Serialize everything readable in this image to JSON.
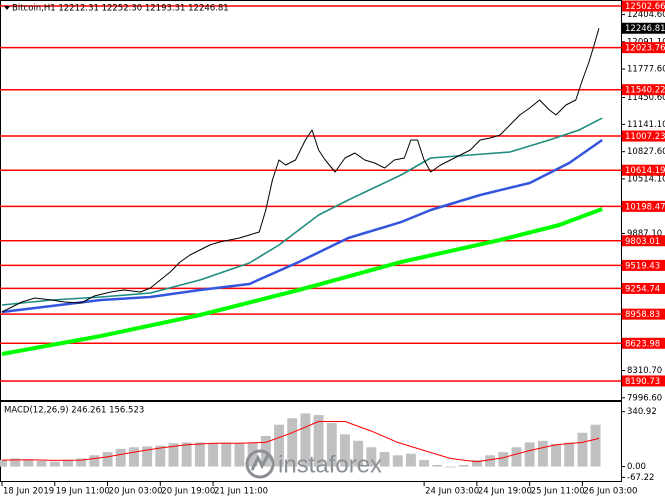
{
  "chart_data": [
    {
      "type": "line",
      "title": "Bitcoin,H1  12212.31 12252.30 12193.31 12246.81",
      "xlim": [
        0,
        188
      ],
      "ylim": [
        7971.66,
        12571.66
      ],
      "xticks": [
        {
          "value": 0,
          "label": "18 Jun 2019"
        },
        {
          "value": 16,
          "label": "19 Jun 11:00"
        },
        {
          "value": 32,
          "label": "20 Jun 03:00"
        },
        {
          "value": 48,
          "label": "20 Jun 19:00"
        },
        {
          "value": 64,
          "label": "21 Jun 11:00"
        },
        {
          "value": 128,
          "label": "24 Jun 03:00"
        },
        {
          "value": 144,
          "label": "24 Jun 19:00"
        },
        {
          "value": 160,
          "label": "25 Jun 11:00"
        },
        {
          "value": 176,
          "label": "26 Jun 03:00"
        }
      ],
      "yticks": [
        {
          "value": 12404.6,
          "label": "12404.60"
        },
        {
          "value": 12091.1,
          "label": "12091.10"
        },
        {
          "value": 11777.6,
          "label": "11777.60"
        },
        {
          "value": 11450.6,
          "label": "11450.60"
        },
        {
          "value": 11141.1,
          "label": "11141.10"
        },
        {
          "value": 10827.6,
          "label": "10827.60"
        },
        {
          "value": 10514.1,
          "label": "10514.10"
        },
        {
          "value": 9887.1,
          "label": "9887.10"
        },
        {
          "value": 8310.7,
          "label": "8310.70"
        },
        {
          "value": 7996.6,
          "label": "7996.60"
        }
      ],
      "levels": [
        12502.66,
        12023.76,
        11540.22,
        11007.23,
        10614.19,
        10198.47,
        9803.01,
        9519.43,
        9254.74,
        8958.83,
        8623.98,
        8190.73
      ],
      "level_color": "#ff0000",
      "last_price": 12246.81,
      "series": [
        {
          "color": "#000000",
          "width": 1,
          "x": [
            0,
            6,
            10,
            15,
            19,
            24,
            28,
            33,
            37,
            42,
            45,
            48,
            51,
            54,
            57,
            60,
            63,
            66,
            69,
            72,
            75,
            78,
            80,
            82,
            84,
            86,
            89,
            92,
            94,
            96,
            98,
            101,
            104,
            107,
            110,
            113,
            116,
            119,
            122,
            124,
            126,
            128,
            130,
            133,
            136,
            139,
            142,
            145,
            148,
            151,
            154,
            157,
            160,
            163,
            166,
            168,
            171,
            174,
            176,
            178,
            180,
            181
          ],
          "values": [
            8984,
            9099,
            9145,
            9122,
            9099,
            9087,
            9168,
            9214,
            9237,
            9214,
            9260,
            9352,
            9444,
            9559,
            9639,
            9697,
            9754,
            9789,
            9812,
            9835,
            9869,
            9904,
            10157,
            10502,
            10732,
            10674,
            10732,
            10962,
            11077,
            10847,
            10732,
            10594,
            10755,
            10812,
            10732,
            10697,
            10640,
            10732,
            10755,
            10962,
            10962,
            10732,
            10594,
            10674,
            10732,
            10789,
            10847,
            10962,
            10985,
            11019,
            11134,
            11249,
            11330,
            11422,
            11307,
            11249,
            11364,
            11422,
            11652,
            11859,
            12112,
            12246.81
          ]
        },
        {
          "color": "#00ff00",
          "width": 4,
          "x": [
            0,
            30,
            60,
            90,
            121,
            151,
            169,
            182
          ],
          "values": [
            8501,
            8708,
            8949,
            9237,
            9559,
            9812,
            9984,
            10168
          ]
        },
        {
          "color": "#3355dd",
          "width": 2.5,
          "x": [
            0,
            15,
            30,
            45,
            60,
            75,
            90,
            105,
            121,
            130,
            145,
            160,
            172,
            182
          ],
          "values": [
            8984,
            9053,
            9122,
            9156,
            9237,
            9306,
            9559,
            9835,
            10018,
            10157,
            10329,
            10467,
            10697,
            10962
          ]
        },
        {
          "color": "#1f8c80",
          "width": 1.6,
          "x": [
            0,
            15,
            30,
            45,
            60,
            75,
            84,
            96,
            105,
            121,
            130,
            142,
            154,
            166,
            175,
            182
          ],
          "values": [
            9064,
            9122,
            9156,
            9202,
            9352,
            9547,
            9754,
            10099,
            10272,
            10559,
            10755,
            10789,
            10824,
            10962,
            11077,
            11214
          ]
        }
      ],
      "watermark": "instaforex"
    },
    {
      "type": "bar",
      "title": "MACD(12,26,9) 246.261 156.523",
      "xlim": [
        0,
        188
      ],
      "ylim": [
        -89.7,
        401
      ],
      "yticks": [
        340.92,
        {
          "value": 0,
          "label": "0.00"
        },
        -67.22
      ],
      "x": [
        0,
        4,
        8,
        12,
        16,
        20,
        24,
        28,
        32,
        36,
        40,
        44,
        48,
        52,
        56,
        60,
        64,
        68,
        72,
        76,
        80,
        84,
        88,
        92,
        96,
        100,
        104,
        108,
        112,
        116,
        120,
        124,
        128,
        132,
        136,
        140,
        144,
        148,
        152,
        156,
        160,
        164,
        168,
        172,
        176,
        180
      ],
      "values": [
        40,
        50,
        45,
        35,
        30,
        40,
        50,
        70,
        90,
        110,
        120,
        125,
        130,
        145,
        150,
        150,
        145,
        150,
        145,
        150,
        190,
        260,
        300,
        330,
        320,
        270,
        200,
        160,
        120,
        90,
        70,
        80,
        40,
        10,
        -5,
        10,
        40,
        70,
        90,
        120,
        150,
        160,
        140,
        150,
        210,
        260
      ],
      "color": "#c0c0c0",
      "signal": {
        "color": "#ff0000",
        "x": [
          0,
          8,
          16,
          24,
          32,
          40,
          48,
          56,
          64,
          72,
          80,
          88,
          96,
          104,
          112,
          120,
          128,
          136,
          144,
          152,
          160,
          168,
          176,
          181
        ],
        "values": [
          40,
          42,
          38,
          40,
          60,
          90,
          115,
          135,
          145,
          145,
          150,
          210,
          280,
          280,
          220,
          150,
          100,
          50,
          30,
          55,
          100,
          135,
          150,
          175
        ]
      }
    }
  ]
}
